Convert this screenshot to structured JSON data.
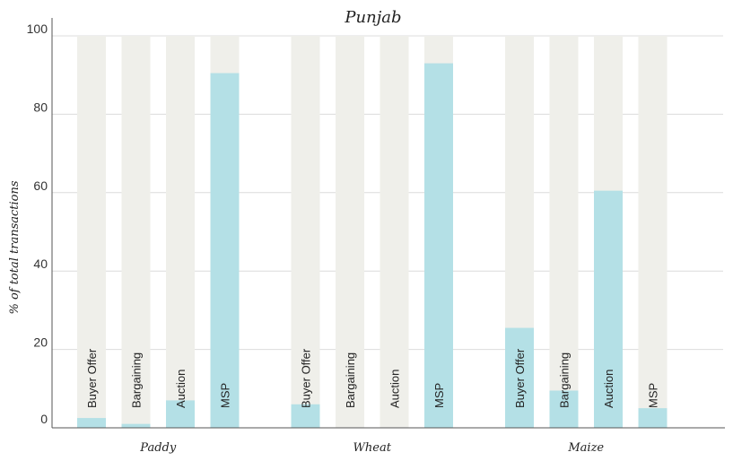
{
  "chart_data": {
    "type": "bar",
    "title": "Punjab",
    "ylabel": "% of total transactions",
    "ylim": [
      0,
      100
    ],
    "yticks": [
      0,
      20,
      40,
      60,
      80,
      100
    ],
    "grid": true,
    "groups": [
      "Paddy",
      "Wheat",
      "Maize"
    ],
    "categories": [
      "Buyer Offer",
      "Bargaining",
      "Auction",
      "MSP"
    ],
    "series": [
      {
        "group": "Paddy",
        "values": [
          2.5,
          1,
          7,
          90.5
        ]
      },
      {
        "group": "Wheat",
        "values": [
          6,
          0,
          0,
          93
        ]
      },
      {
        "group": "Maize",
        "values": [
          25.5,
          9.5,
          60.5,
          5
        ]
      }
    ],
    "colors": {
      "bar": "#b4e0e6",
      "background_bar": "#efefea",
      "grid": "#dcdcdc",
      "axis": "#555555"
    }
  }
}
